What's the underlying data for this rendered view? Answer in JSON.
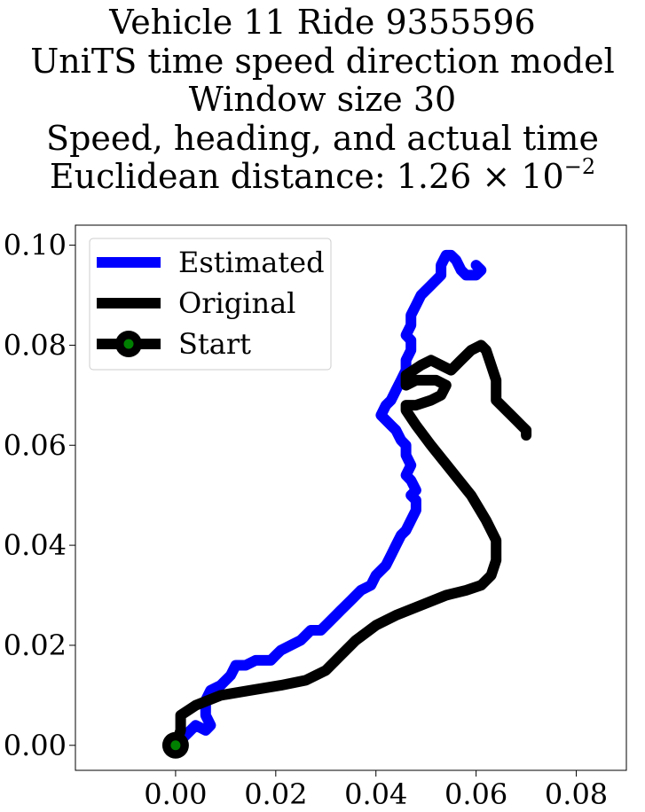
{
  "title": {
    "line1": "Vehicle 11 Ride 9355596",
    "line2": "UniTS time speed direction model",
    "line3": "Window size 30",
    "line4": "Speed, heading, and actual time",
    "line5_prefix": "Euclidean distance: 1.26 × 10",
    "line5_exponent": "−2"
  },
  "chart_data": {
    "type": "line",
    "xlim": [
      -0.02,
      0.09
    ],
    "ylim": [
      -0.005,
      0.104
    ],
    "xticks": [
      0.0,
      0.02,
      0.04,
      0.06,
      0.08
    ],
    "xtick_labels": [
      "0.00",
      "0.02",
      "0.04",
      "0.06",
      "0.08"
    ],
    "yticks": [
      0.0,
      0.02,
      0.04,
      0.06,
      0.08,
      0.1
    ],
    "ytick_labels": [
      "0.00",
      "0.02",
      "0.04",
      "0.06",
      "0.08",
      "0.10"
    ],
    "grid": false,
    "legend_position": "top-left",
    "legend": [
      "Estimated",
      "Original",
      "Start"
    ],
    "series": [
      {
        "name": "Estimated",
        "color": "#0000ff",
        "points": [
          [
            0.0,
            0.0
          ],
          [
            0.002,
            0.002
          ],
          [
            0.004,
            0.004
          ],
          [
            0.006,
            0.003
          ],
          [
            0.007,
            0.004
          ],
          [
            0.006,
            0.006
          ],
          [
            0.006,
            0.009
          ],
          [
            0.007,
            0.011
          ],
          [
            0.009,
            0.012
          ],
          [
            0.011,
            0.014
          ],
          [
            0.012,
            0.016
          ],
          [
            0.014,
            0.016
          ],
          [
            0.016,
            0.017
          ],
          [
            0.019,
            0.017
          ],
          [
            0.02,
            0.018
          ],
          [
            0.021,
            0.019
          ],
          [
            0.023,
            0.02
          ],
          [
            0.025,
            0.021
          ],
          [
            0.027,
            0.023
          ],
          [
            0.029,
            0.023
          ],
          [
            0.031,
            0.025
          ],
          [
            0.033,
            0.027
          ],
          [
            0.035,
            0.029
          ],
          [
            0.037,
            0.031
          ],
          [
            0.039,
            0.032
          ],
          [
            0.04,
            0.034
          ],
          [
            0.042,
            0.036
          ],
          [
            0.043,
            0.038
          ],
          [
            0.044,
            0.04
          ],
          [
            0.045,
            0.042
          ],
          [
            0.046,
            0.043
          ],
          [
            0.047,
            0.045
          ],
          [
            0.048,
            0.047
          ],
          [
            0.048,
            0.049
          ],
          [
            0.047,
            0.05
          ],
          [
            0.048,
            0.051
          ],
          [
            0.047,
            0.053
          ],
          [
            0.046,
            0.054
          ],
          [
            0.047,
            0.056
          ],
          [
            0.046,
            0.058
          ],
          [
            0.046,
            0.06
          ],
          [
            0.045,
            0.061
          ],
          [
            0.044,
            0.063
          ],
          [
            0.043,
            0.064
          ],
          [
            0.042,
            0.065
          ],
          [
            0.041,
            0.066
          ],
          [
            0.042,
            0.068
          ],
          [
            0.043,
            0.069
          ],
          [
            0.044,
            0.071
          ],
          [
            0.045,
            0.073
          ],
          [
            0.046,
            0.075
          ],
          [
            0.046,
            0.077
          ],
          [
            0.047,
            0.079
          ],
          [
            0.047,
            0.081
          ],
          [
            0.046,
            0.082
          ],
          [
            0.047,
            0.084
          ],
          [
            0.047,
            0.086
          ],
          [
            0.048,
            0.088
          ],
          [
            0.049,
            0.09
          ],
          [
            0.051,
            0.092
          ],
          [
            0.053,
            0.094
          ],
          [
            0.053,
            0.096
          ],
          [
            0.054,
            0.098
          ],
          [
            0.055,
            0.098
          ],
          [
            0.056,
            0.097
          ],
          [
            0.057,
            0.095
          ],
          [
            0.058,
            0.094
          ],
          [
            0.059,
            0.094
          ],
          [
            0.06,
            0.094
          ],
          [
            0.061,
            0.095
          ],
          [
            0.06,
            0.096
          ]
        ]
      },
      {
        "name": "Original",
        "color": "#000000",
        "points": [
          [
            0.0,
            0.0
          ],
          [
            0.001,
            0.003
          ],
          [
            0.001,
            0.006
          ],
          [
            0.004,
            0.008
          ],
          [
            0.009,
            0.01
          ],
          [
            0.015,
            0.011
          ],
          [
            0.021,
            0.012
          ],
          [
            0.026,
            0.013
          ],
          [
            0.03,
            0.015
          ],
          [
            0.033,
            0.018
          ],
          [
            0.036,
            0.021
          ],
          [
            0.04,
            0.024
          ],
          [
            0.044,
            0.026
          ],
          [
            0.049,
            0.028
          ],
          [
            0.054,
            0.03
          ],
          [
            0.058,
            0.031
          ],
          [
            0.061,
            0.032
          ],
          [
            0.063,
            0.034
          ],
          [
            0.064,
            0.037
          ],
          [
            0.064,
            0.041
          ],
          [
            0.062,
            0.045
          ],
          [
            0.059,
            0.05
          ],
          [
            0.055,
            0.055
          ],
          [
            0.051,
            0.06
          ],
          [
            0.048,
            0.064
          ],
          [
            0.046,
            0.067
          ],
          [
            0.046,
            0.068
          ],
          [
            0.048,
            0.068
          ],
          [
            0.051,
            0.069
          ],
          [
            0.053,
            0.07
          ],
          [
            0.054,
            0.072
          ],
          [
            0.052,
            0.073
          ],
          [
            0.048,
            0.073
          ],
          [
            0.046,
            0.072
          ],
          [
            0.046,
            0.074
          ],
          [
            0.049,
            0.076
          ],
          [
            0.051,
            0.077
          ],
          [
            0.053,
            0.076
          ],
          [
            0.055,
            0.075
          ],
          [
            0.057,
            0.077
          ],
          [
            0.059,
            0.079
          ],
          [
            0.061,
            0.08
          ],
          [
            0.062,
            0.079
          ],
          [
            0.063,
            0.076
          ],
          [
            0.064,
            0.073
          ],
          [
            0.064,
            0.069
          ],
          [
            0.066,
            0.067
          ],
          [
            0.068,
            0.065
          ],
          [
            0.069,
            0.064
          ],
          [
            0.07,
            0.063
          ],
          [
            0.07,
            0.062
          ]
        ]
      }
    ],
    "start_point": {
      "name": "Start",
      "x": 0.0,
      "y": 0.0,
      "marker_color": "#008000",
      "edge_color": "#000000"
    }
  }
}
